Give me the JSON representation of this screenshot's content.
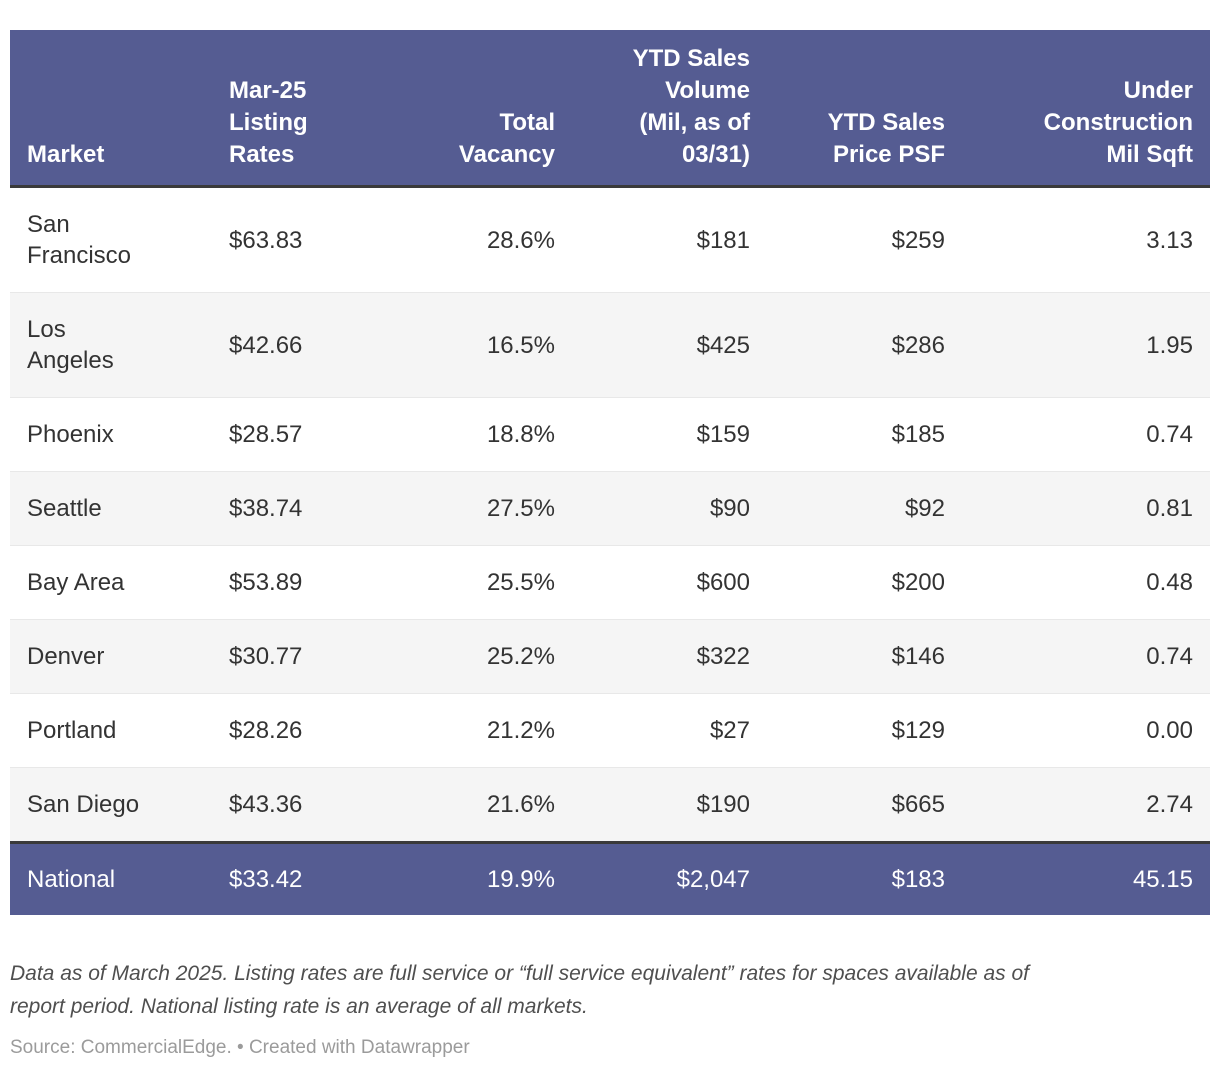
{
  "colors": {
    "header_bg": "#555C92",
    "header_text": "#ffffff",
    "row_bg": "#ffffff",
    "row_alt_bg": "#f5f5f5",
    "body_text": "#333333",
    "divider": "#3a3a3a",
    "row_line": "#e8e8e8",
    "note_text": "#4f4f4f",
    "source_text": "#9b9b9b"
  },
  "table": {
    "header": {
      "market": "Market",
      "listing": "Mar-25\nListing\nRates",
      "vacancy": "Total\nVacancy",
      "volume": "YTD Sales\nVolume\n(Mil, as of\n03/31)",
      "psf": "YTD Sales\nPrice PSF",
      "construction": "Under\nConstruction\nMil Sqft"
    },
    "rows": [
      {
        "market": "San\nFrancisco",
        "listing": "$63.83",
        "vacancy": "28.6%",
        "volume": "$181",
        "psf": "$259",
        "construction": "3.13"
      },
      {
        "market": "Los\nAngeles",
        "listing": "$42.66",
        "vacancy": "16.5%",
        "volume": "$425",
        "psf": "$286",
        "construction": "1.95"
      },
      {
        "market": "Phoenix",
        "listing": "$28.57",
        "vacancy": "18.8%",
        "volume": "$159",
        "psf": "$185",
        "construction": "0.74"
      },
      {
        "market": "Seattle",
        "listing": "$38.74",
        "vacancy": "27.5%",
        "volume": "$90",
        "psf": "$92",
        "construction": "0.81"
      },
      {
        "market": "Bay Area",
        "listing": "$53.89",
        "vacancy": "25.5%",
        "volume": "$600",
        "psf": "$200",
        "construction": "0.48"
      },
      {
        "market": "Denver",
        "listing": "$30.77",
        "vacancy": "25.2%",
        "volume": "$322",
        "psf": "$146",
        "construction": "0.74"
      },
      {
        "market": "Portland",
        "listing": "$28.26",
        "vacancy": "21.2%",
        "volume": "$27",
        "psf": "$129",
        "construction": "0.00"
      },
      {
        "market": "San Diego",
        "listing": "$43.36",
        "vacancy": "21.6%",
        "volume": "$190",
        "psf": "$665",
        "construction": "2.74"
      }
    ],
    "total_row": {
      "market": "National",
      "listing": "$33.42",
      "vacancy": "19.9%",
      "volume": "$2,047",
      "psf": "$183",
      "construction": "45.15"
    }
  },
  "notes": {
    "footnote": "Data as of March 2025. Listing rates are full service or “full service equivalent” rates for spaces available as of\nreport period. National listing rate is an average of all markets.",
    "source": "Source: CommercialEdge. • Created with Datawrapper"
  },
  "chart_data": {
    "type": "table",
    "columns": [
      "Market",
      "Mar-25 Listing Rates",
      "Total Vacancy",
      "YTD Sales Volume (Mil, as of 03/31)",
      "YTD Sales Price PSF",
      "Under Construction Mil Sqft"
    ],
    "rows": [
      [
        "San Francisco",
        "$63.83",
        "28.6%",
        "$181",
        "$259",
        "3.13"
      ],
      [
        "Los Angeles",
        "$42.66",
        "16.5%",
        "$425",
        "$286",
        "1.95"
      ],
      [
        "Phoenix",
        "$28.57",
        "18.8%",
        "$159",
        "$185",
        "0.74"
      ],
      [
        "Seattle",
        "$38.74",
        "27.5%",
        "$90",
        "$92",
        "0.81"
      ],
      [
        "Bay Area",
        "$53.89",
        "25.5%",
        "$600",
        "$200",
        "0.48"
      ],
      [
        "Denver",
        "$30.77",
        "25.2%",
        "$322",
        "$146",
        "0.74"
      ],
      [
        "Portland",
        "$28.26",
        "21.2%",
        "$27",
        "$129",
        "0.00"
      ],
      [
        "San Diego",
        "$43.36",
        "21.6%",
        "$190",
        "$665",
        "2.74"
      ],
      [
        "National",
        "$33.42",
        "19.9%",
        "$2,047",
        "$183",
        "45.15"
      ]
    ],
    "column_alignment": [
      "left",
      "left",
      "right",
      "right",
      "right",
      "right"
    ],
    "highlight_row": "National",
    "notes": "Data as of March 2025. Listing rates are full service or “full service equivalent” rates for spaces available as of report period. National listing rate is an average of all markets.",
    "source": "Source: CommercialEdge. • Created with Datawrapper"
  }
}
